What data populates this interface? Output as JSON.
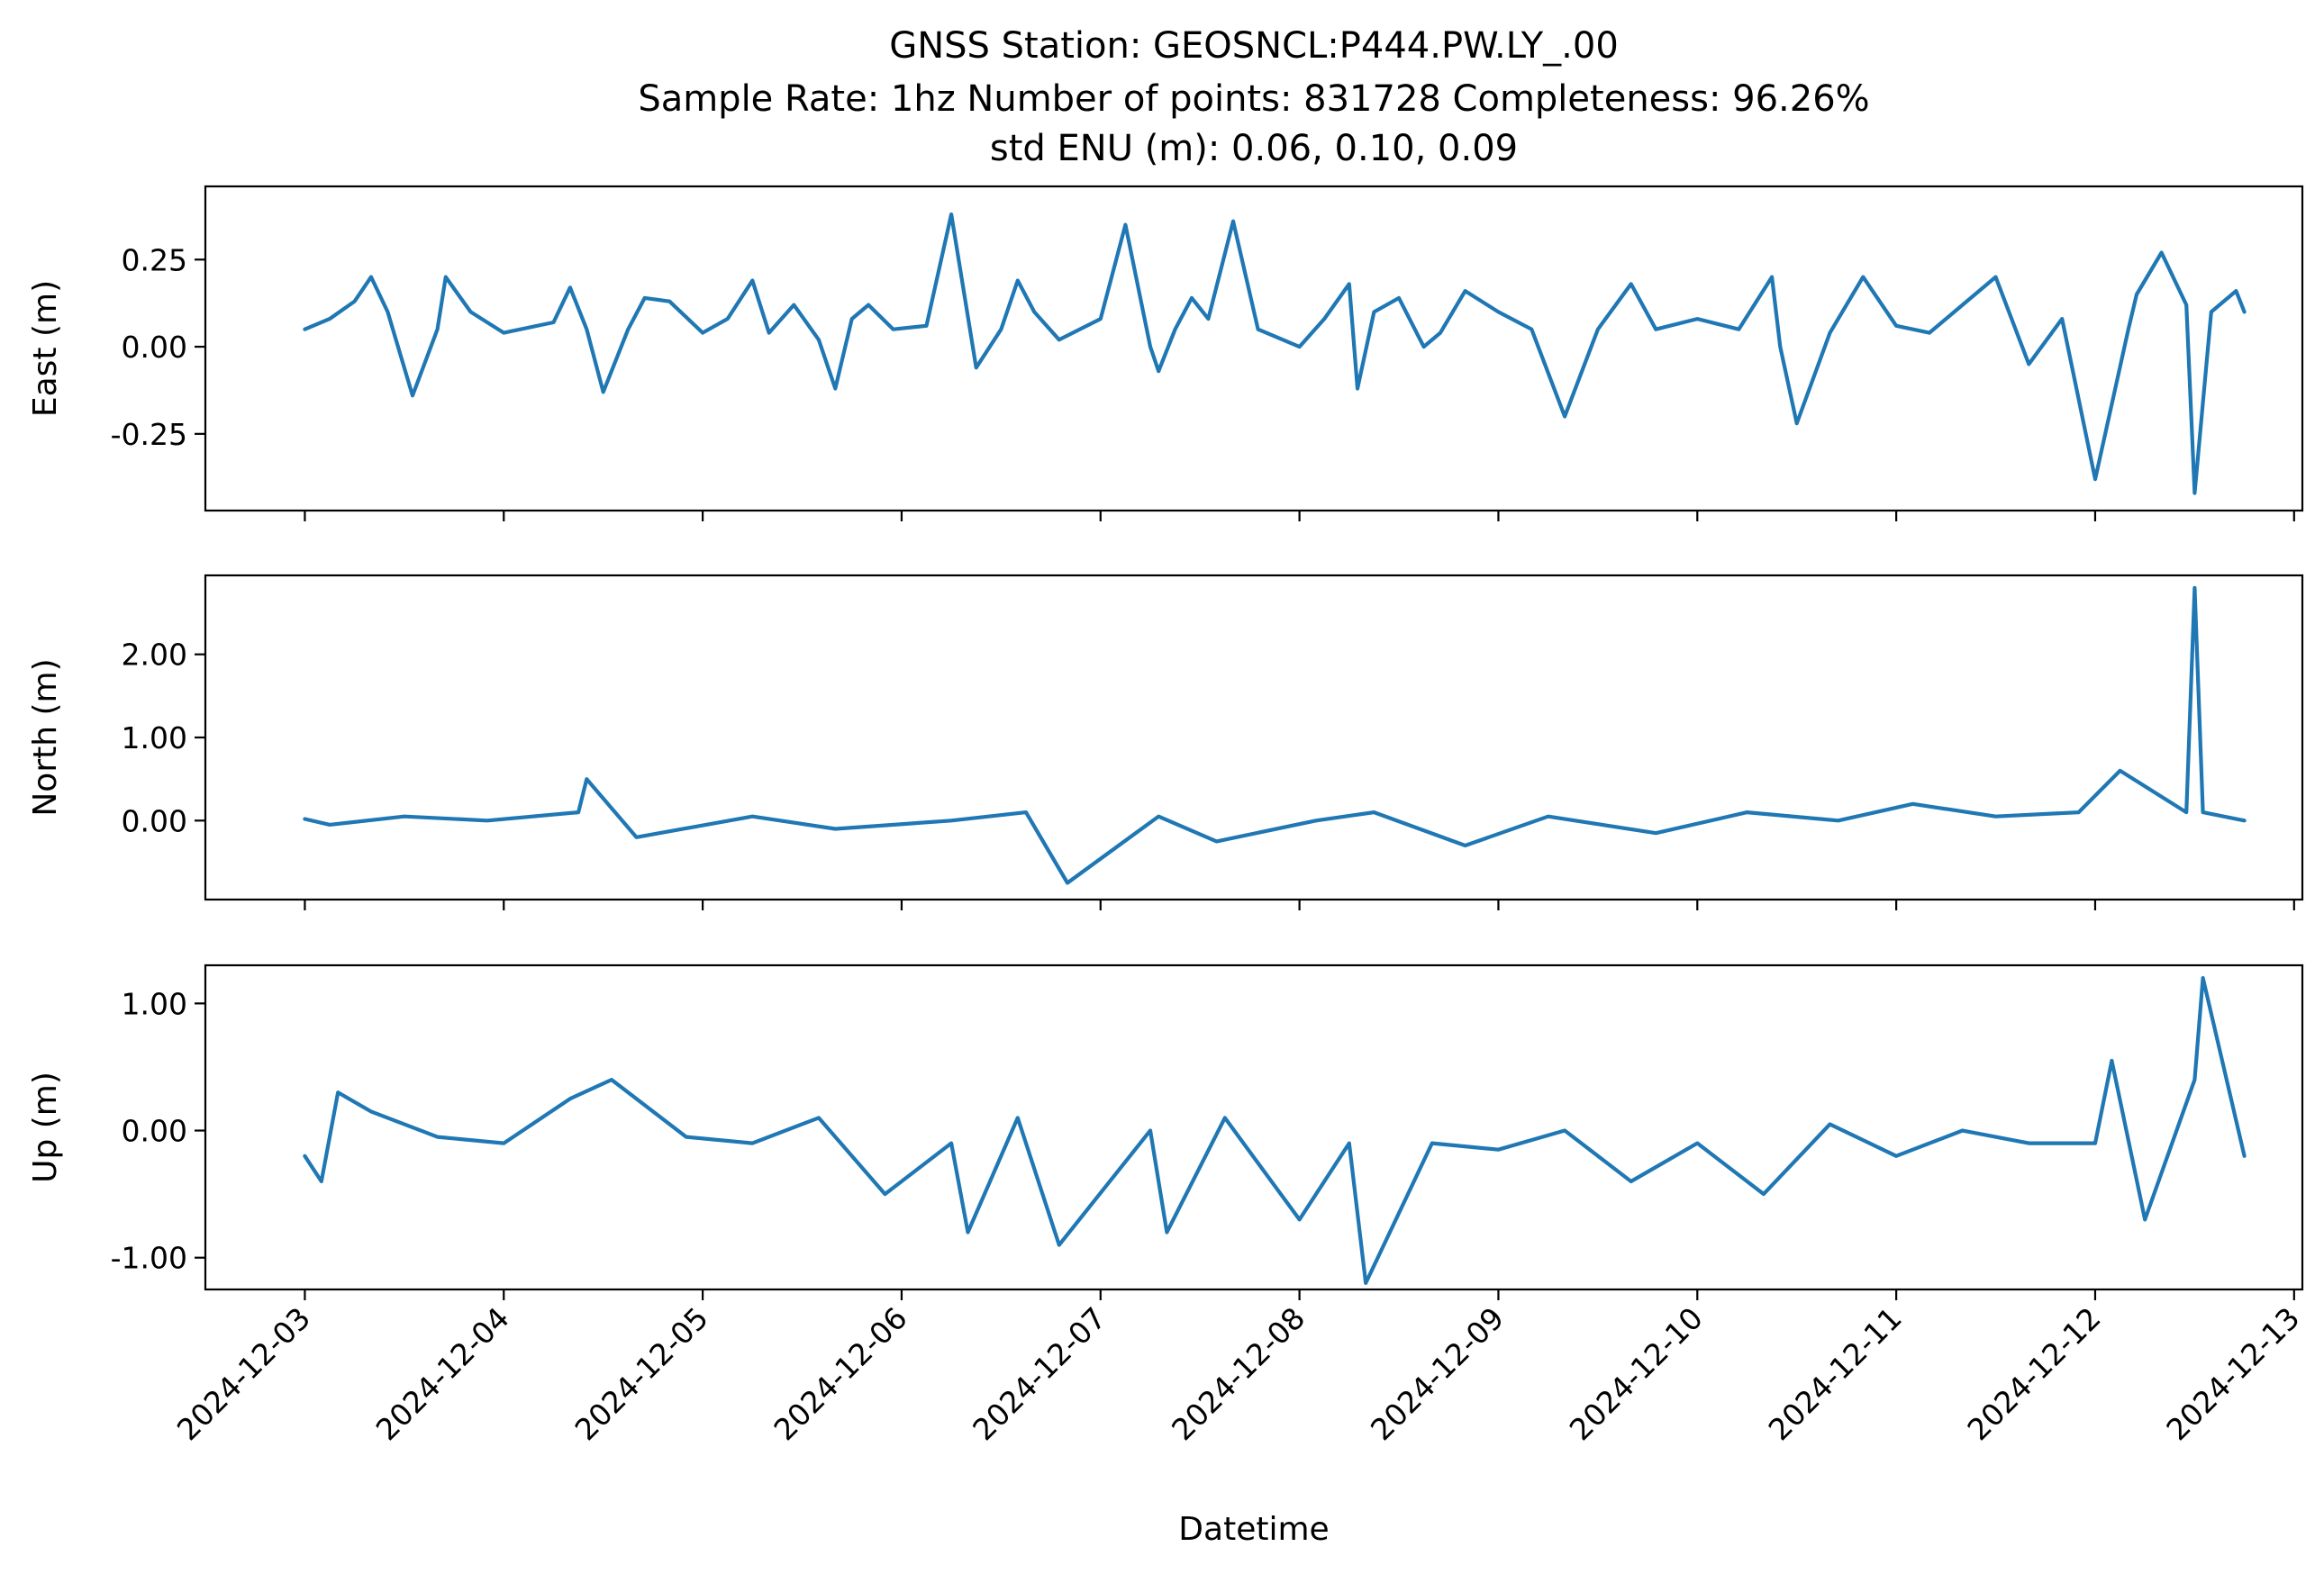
{
  "figure": {
    "title_lines": [
      "GNSS Station: GEOSNCL:P444.PW.LY_.00",
      "Sample Rate: 1hz   Number of points: 831728    Completeness:  96.26%",
      "std ENU (m):  0.06, 0.10, 0.09"
    ],
    "xlabel": "Datetime",
    "line_color": "#1f77b4"
  },
  "chart_data": [
    {
      "type": "line",
      "ylabel": "East (m)",
      "ylim": [
        -0.47,
        0.46
      ],
      "yticks": [
        0.25,
        0.0,
        -0.25
      ],
      "ytick_labels": [
        "0.25",
        "0.00",
        "-0.25"
      ],
      "xlim": [
        "2024-12-02T12:00",
        "2024-12-13T01:00"
      ],
      "xticks": [
        "2024-12-03",
        "2024-12-04",
        "2024-12-05",
        "2024-12-06",
        "2024-12-07",
        "2024-12-08",
        "2024-12-09",
        "2024-12-10",
        "2024-12-11",
        "2024-12-12",
        "2024-12-13"
      ],
      "xtick_labels_shown": false,
      "series": [
        {
          "x": [
            "2024-12-03T00:00",
            "2024-12-03T03:00",
            "2024-12-03T06:00",
            "2024-12-03T08:00",
            "2024-12-03T10:00",
            "2024-12-03T13:00",
            "2024-12-03T16:00",
            "2024-12-03T17:00",
            "2024-12-03T20:00",
            "2024-12-04T00:00",
            "2024-12-04T06:00",
            "2024-12-04T08:00",
            "2024-12-04T10:00",
            "2024-12-04T12:00",
            "2024-12-04T15:00",
            "2024-12-04T17:00",
            "2024-12-04T20:00",
            "2024-12-05T00:00",
            "2024-12-05T03:00",
            "2024-12-05T06:00",
            "2024-12-05T08:00",
            "2024-12-05T11:00",
            "2024-12-05T14:00",
            "2024-12-05T16:00",
            "2024-12-05T18:00",
            "2024-12-05T20:00",
            "2024-12-05T23:00",
            "2024-12-06T03:00",
            "2024-12-06T06:00",
            "2024-12-06T09:00",
            "2024-12-06T12:00",
            "2024-12-06T14:00",
            "2024-12-06T16:00",
            "2024-12-06T19:00",
            "2024-12-07T00:00",
            "2024-12-07T03:00",
            "2024-12-07T06:00",
            "2024-12-07T07:00",
            "2024-12-07T09:00",
            "2024-12-07T11:00",
            "2024-12-07T13:00",
            "2024-12-07T16:00",
            "2024-12-07T19:00",
            "2024-12-08T00:00",
            "2024-12-08T03:00",
            "2024-12-08T06:00",
            "2024-12-08T07:00",
            "2024-12-08T09:00",
            "2024-12-08T12:00",
            "2024-12-08T15:00",
            "2024-12-08T17:00",
            "2024-12-08T20:00",
            "2024-12-09T00:00",
            "2024-12-09T04:00",
            "2024-12-09T08:00",
            "2024-12-09T12:00",
            "2024-12-09T16:00",
            "2024-12-09T19:00",
            "2024-12-10T00:00",
            "2024-12-10T05:00",
            "2024-12-10T09:00",
            "2024-12-10T10:00",
            "2024-12-10T12:00",
            "2024-12-10T16:00",
            "2024-12-10T20:00",
            "2024-12-11T00:00",
            "2024-12-11T04:00",
            "2024-12-11T08:00",
            "2024-12-11T12:00",
            "2024-12-11T16:00",
            "2024-12-11T20:00",
            "2024-12-12T00:00",
            "2024-12-12T04:00",
            "2024-12-12T05:00",
            "2024-12-12T08:00",
            "2024-12-12T11:00",
            "2024-12-12T12:00",
            "2024-12-12T14:00",
            "2024-12-12T17:00",
            "2024-12-12T18:00"
          ],
          "y": [
            0.05,
            0.08,
            0.13,
            0.2,
            0.1,
            -0.14,
            0.05,
            0.2,
            0.1,
            0.04,
            0.07,
            0.17,
            0.05,
            -0.13,
            0.05,
            0.14,
            0.13,
            0.04,
            0.08,
            0.19,
            0.04,
            0.12,
            0.02,
            -0.12,
            0.08,
            0.12,
            0.05,
            0.06,
            0.38,
            -0.06,
            0.05,
            0.19,
            0.1,
            0.02,
            0.08,
            0.35,
            0.0,
            -0.07,
            0.05,
            0.14,
            0.08,
            0.36,
            0.05,
            0.0,
            0.08,
            0.18,
            -0.12,
            0.1,
            0.14,
            0.0,
            0.04,
            0.16,
            0.1,
            0.05,
            -0.2,
            0.05,
            0.18,
            0.05,
            0.08,
            0.05,
            0.2,
            0.0,
            -0.22,
            0.04,
            0.2,
            0.06,
            0.04,
            0.12,
            0.2,
            -0.05,
            0.08,
            -0.38,
            0.05,
            0.15,
            0.27,
            0.12,
            -0.42,
            0.1,
            0.16,
            0.1
          ]
        }
      ]
    },
    {
      "type": "line",
      "ylabel": "North (m)",
      "ylim": [
        -0.95,
        2.95
      ],
      "yticks": [
        2.0,
        1.0,
        0.0
      ],
      "ytick_labels": [
        "2.00",
        "1.00",
        "0.00"
      ],
      "xlim": [
        "2024-12-02T12:00",
        "2024-12-13T01:00"
      ],
      "xticks": [
        "2024-12-03",
        "2024-12-04",
        "2024-12-05",
        "2024-12-06",
        "2024-12-07",
        "2024-12-08",
        "2024-12-09",
        "2024-12-10",
        "2024-12-11",
        "2024-12-12",
        "2024-12-13"
      ],
      "xtick_labels_shown": false,
      "series": [
        {
          "x": [
            "2024-12-03T00:00",
            "2024-12-03T03:00",
            "2024-12-03T12:00",
            "2024-12-03T22:00",
            "2024-12-04T09:00",
            "2024-12-04T10:00",
            "2024-12-04T16:00",
            "2024-12-05T06:00",
            "2024-12-05T16:00",
            "2024-12-06T06:00",
            "2024-12-06T15:00",
            "2024-12-06T20:00",
            "2024-12-07T07:00",
            "2024-12-07T14:00",
            "2024-12-08T02:00",
            "2024-12-08T09:00",
            "2024-12-08T20:00",
            "2024-12-09T06:00",
            "2024-12-09T19:00",
            "2024-12-10T06:00",
            "2024-12-10T17:00",
            "2024-12-11T02:00",
            "2024-12-11T12:00",
            "2024-12-11T22:00",
            "2024-12-12T03:00",
            "2024-12-12T11:00",
            "2024-12-12T12:00",
            "2024-12-12T13:00",
            "2024-12-12T18:00"
          ],
          "y": [
            0.02,
            -0.05,
            0.05,
            0.0,
            0.1,
            0.5,
            -0.2,
            0.05,
            -0.1,
            0.0,
            0.1,
            -0.75,
            0.05,
            -0.25,
            0.0,
            0.1,
            -0.3,
            0.05,
            -0.15,
            0.1,
            0.0,
            0.2,
            0.05,
            0.1,
            0.6,
            0.1,
            2.8,
            0.1,
            0.0
          ]
        }
      ]
    },
    {
      "type": "line",
      "ylabel": "Up (m)",
      "ylim": [
        -1.25,
        1.3
      ],
      "yticks": [
        1.0,
        0.0,
        -1.0
      ],
      "ytick_labels": [
        "1.00",
        "0.00",
        "-1.00"
      ],
      "xlim": [
        "2024-12-02T12:00",
        "2024-12-13T01:00"
      ],
      "xticks": [
        "2024-12-03",
        "2024-12-04",
        "2024-12-05",
        "2024-12-06",
        "2024-12-07",
        "2024-12-08",
        "2024-12-09",
        "2024-12-10",
        "2024-12-11",
        "2024-12-12",
        "2024-12-13"
      ],
      "xtick_labels": [
        "2024-12-03",
        "2024-12-04",
        "2024-12-05",
        "2024-12-06",
        "2024-12-07",
        "2024-12-08",
        "2024-12-09",
        "2024-12-10",
        "2024-12-11",
        "2024-12-12",
        "2024-12-13"
      ],
      "series": [
        {
          "x": [
            "2024-12-03T00:00",
            "2024-12-03T02:00",
            "2024-12-03T04:00",
            "2024-12-03T08:00",
            "2024-12-03T16:00",
            "2024-12-04T00:00",
            "2024-12-04T08:00",
            "2024-12-04T13:00",
            "2024-12-04T22:00",
            "2024-12-05T06:00",
            "2024-12-05T14:00",
            "2024-12-05T22:00",
            "2024-12-06T06:00",
            "2024-12-06T08:00",
            "2024-12-06T14:00",
            "2024-12-06T19:00",
            "2024-12-07T06:00",
            "2024-12-07T08:00",
            "2024-12-07T15:00",
            "2024-12-08T00:00",
            "2024-12-08T06:00",
            "2024-12-08T08:00",
            "2024-12-08T16:00",
            "2024-12-09T00:00",
            "2024-12-09T08:00",
            "2024-12-09T16:00",
            "2024-12-10T00:00",
            "2024-12-10T08:00",
            "2024-12-10T16:00",
            "2024-12-11T00:00",
            "2024-12-11T08:00",
            "2024-12-11T16:00",
            "2024-12-12T00:00",
            "2024-12-12T02:00",
            "2024-12-12T06:00",
            "2024-12-12T12:00",
            "2024-12-12T13:00",
            "2024-12-12T18:00"
          ],
          "y": [
            -0.2,
            -0.4,
            0.3,
            0.15,
            -0.05,
            -0.1,
            0.25,
            0.4,
            -0.05,
            -0.1,
            0.1,
            -0.5,
            -0.1,
            -0.8,
            0.1,
            -0.9,
            0.0,
            -0.8,
            0.1,
            -0.7,
            -0.1,
            -1.2,
            -0.1,
            -0.15,
            0.0,
            -0.4,
            -0.1,
            -0.5,
            0.05,
            -0.2,
            0.0,
            -0.1,
            -0.1,
            0.55,
            -0.7,
            0.4,
            1.2,
            -0.2
          ]
        }
      ]
    }
  ]
}
